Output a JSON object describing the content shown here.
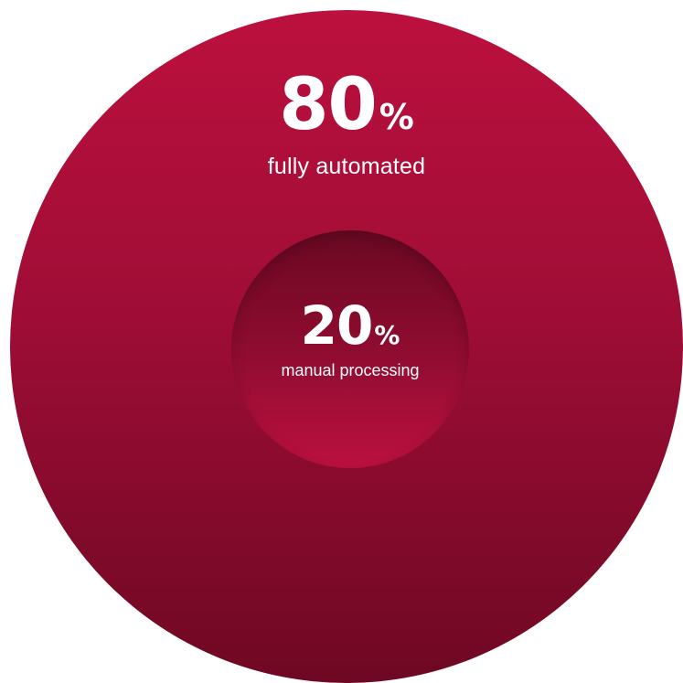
{
  "chart_data": {
    "type": "pie",
    "categories": [
      "fully automated",
      "manual processing"
    ],
    "values": [
      80,
      20
    ],
    "unit": "%",
    "title": "",
    "colors": [
      "#a50e38",
      "#7a0a28"
    ]
  },
  "stats": {
    "automated": {
      "value": "80",
      "unit": "%",
      "label": "fully automated"
    },
    "manual": {
      "value": "20",
      "unit": "%",
      "label": "manual processing"
    }
  }
}
